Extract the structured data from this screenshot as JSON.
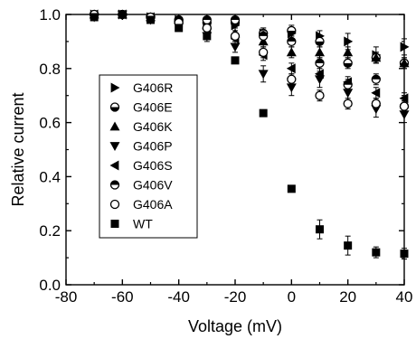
{
  "chart_data": {
    "type": "scatter",
    "xlabel": "Voltage (mV)",
    "ylabel": "Relative current",
    "xlim": [
      -80,
      40
    ],
    "ylim": [
      0.0,
      1.0
    ],
    "x_ticks": [
      -80,
      -60,
      -40,
      -20,
      0,
      20,
      40
    ],
    "x_tick_labels": [
      "-80",
      "-60",
      "-40",
      "-20",
      "0",
      "20",
      "40"
    ],
    "y_ticks": [
      0.0,
      0.2,
      0.4,
      0.6,
      0.8,
      1.0
    ],
    "y_tick_labels": [
      "0.0",
      "0.2",
      "0.4",
      "0.6",
      "0.8",
      "1.0"
    ],
    "grid": false,
    "legend_position": "center-left",
    "x": [
      -70,
      -60,
      -50,
      -40,
      -30,
      -20,
      -10,
      0,
      10,
      20,
      30,
      40
    ],
    "series": [
      {
        "name": "G406R",
        "marker": "triangle-right",
        "values": [
          1.0,
          1.0,
          0.99,
          0.98,
          0.97,
          0.96,
          0.93,
          0.93,
          0.92,
          0.9,
          0.85,
          0.88
        ],
        "err": [
          0.01,
          0.01,
          0.01,
          0.01,
          0.01,
          0.02,
          0.02,
          0.02,
          0.02,
          0.03,
          0.03,
          0.03
        ]
      },
      {
        "name": "G406E",
        "marker": "circle-bottom-half",
        "values": [
          1.0,
          1.0,
          0.99,
          0.98,
          0.97,
          0.97,
          0.93,
          0.94,
          0.9,
          0.82,
          0.84,
          0.82
        ],
        "err": [
          0.01,
          0.01,
          0.01,
          0.01,
          0.01,
          0.01,
          0.02,
          0.02,
          0.02,
          0.02,
          0.02,
          0.02
        ]
      },
      {
        "name": "G406K",
        "marker": "triangle-up",
        "values": [
          1.0,
          1.0,
          0.99,
          0.98,
          0.96,
          0.93,
          0.9,
          0.86,
          0.86,
          0.86,
          0.84,
          0.82
        ],
        "err": [
          0.01,
          0.01,
          0.01,
          0.01,
          0.01,
          0.02,
          0.02,
          0.02,
          0.02,
          0.02,
          0.02,
          0.02
        ]
      },
      {
        "name": "G406P",
        "marker": "triangle-down",
        "values": [
          0.99,
          1.0,
          0.98,
          0.96,
          0.92,
          0.88,
          0.78,
          0.73,
          0.76,
          0.71,
          0.65,
          0.63
        ],
        "err": [
          0.01,
          0.01,
          0.01,
          0.01,
          0.02,
          0.02,
          0.03,
          0.03,
          0.03,
          0.03,
          0.03,
          0.03
        ]
      },
      {
        "name": "G406S",
        "marker": "triangle-left",
        "values": [
          1.0,
          1.0,
          0.99,
          0.97,
          0.95,
          0.91,
          0.85,
          0.8,
          0.78,
          0.75,
          0.71,
          0.69
        ],
        "err": [
          0.01,
          0.01,
          0.01,
          0.01,
          0.01,
          0.02,
          0.02,
          0.02,
          0.02,
          0.02,
          0.02,
          0.02
        ]
      },
      {
        "name": "G406V",
        "marker": "circle-top-half",
        "values": [
          1.0,
          1.0,
          0.99,
          0.98,
          0.98,
          0.98,
          0.92,
          0.9,
          0.82,
          0.74,
          0.76,
          0.66
        ],
        "err": [
          0.01,
          0.01,
          0.01,
          0.01,
          0.01,
          0.01,
          0.02,
          0.02,
          0.02,
          0.02,
          0.02,
          0.02
        ]
      },
      {
        "name": "G406A",
        "marker": "circle-open",
        "values": [
          1.0,
          1.0,
          0.99,
          0.97,
          0.95,
          0.92,
          0.86,
          0.76,
          0.7,
          0.67,
          0.67,
          0.66
        ],
        "err": [
          0.01,
          0.01,
          0.01,
          0.01,
          0.01,
          0.02,
          0.02,
          0.02,
          0.02,
          0.02,
          0.02,
          0.02
        ]
      },
      {
        "name": "WT",
        "marker": "square",
        "values": [
          0.99,
          1.0,
          0.98,
          0.95,
          0.92,
          0.83,
          0.635,
          0.355,
          0.205,
          0.145,
          0.12,
          0.115
        ],
        "err": [
          0.01,
          0.01,
          0.01,
          0.01,
          0.01,
          0.01,
          0.01,
          0.01,
          0.035,
          0.035,
          0.02,
          0.02
        ]
      }
    ]
  }
}
